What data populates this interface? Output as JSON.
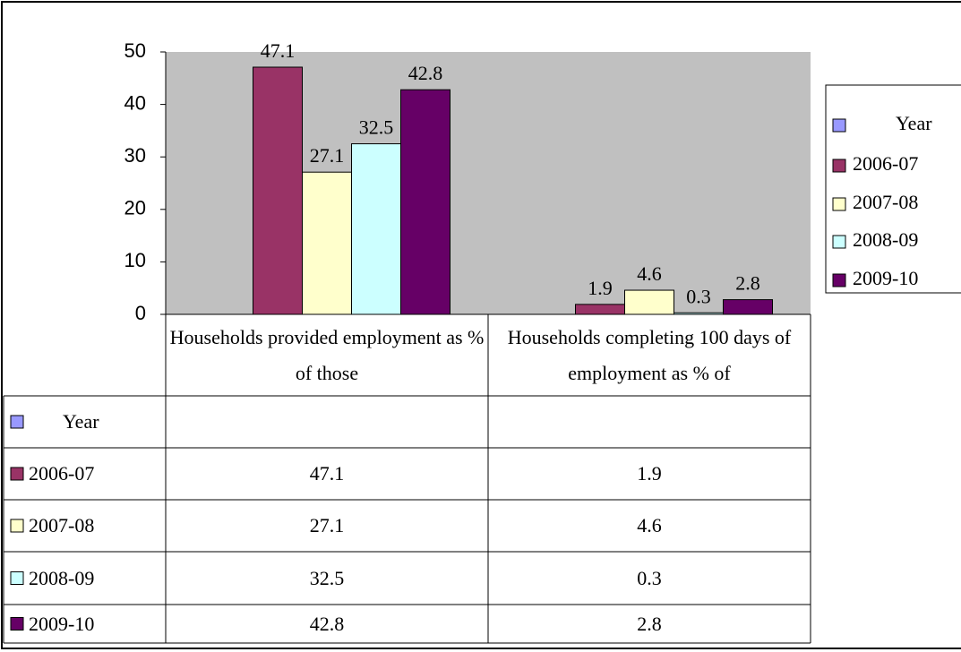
{
  "chart_data": {
    "type": "bar",
    "categories": [
      "Households provided employment as % of those",
      "Households completing 100 days of employment as % of"
    ],
    "series": [
      {
        "name": "Year",
        "color": "#9999ff",
        "values": [
          null,
          null
        ]
      },
      {
        "name": "2006-07",
        "color": "#993366",
        "values": [
          47.1,
          1.9
        ]
      },
      {
        "name": "2007-08",
        "color": "#ffffcc",
        "values": [
          27.1,
          4.6
        ]
      },
      {
        "name": "2008-09",
        "color": "#ccffff",
        "values": [
          32.5,
          0.3
        ]
      },
      {
        "name": "2009-10",
        "color": "#660066",
        "values": [
          42.8,
          2.8
        ]
      }
    ],
    "ylim": [
      0,
      50
    ],
    "yticks": [
      0,
      10,
      20,
      30,
      40,
      50
    ],
    "plot_background": "#c0c0c0",
    "legend": "right",
    "data_table": true
  }
}
